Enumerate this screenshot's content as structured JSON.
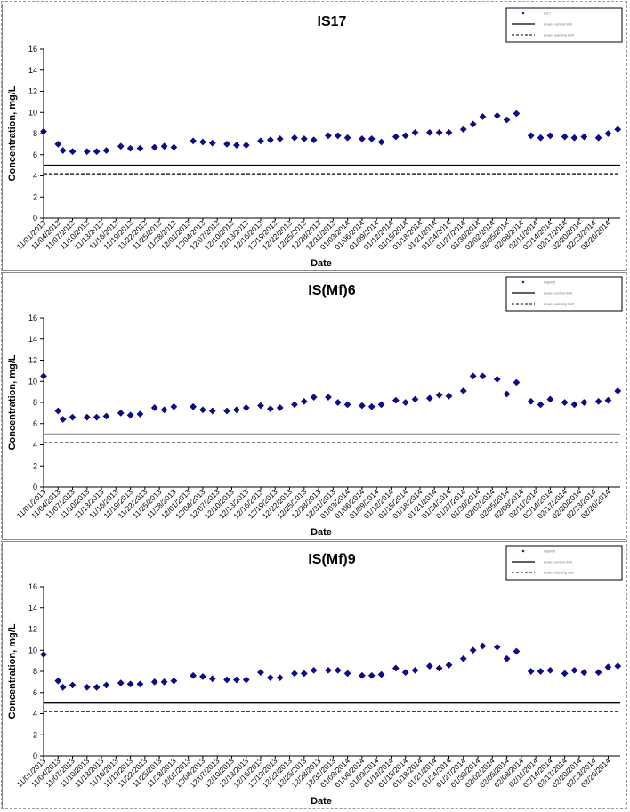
{
  "chart_data": [
    {
      "type": "scatter",
      "title": "IS17",
      "xlabel": "Date",
      "ylabel": "Concentration, mg/L",
      "ylim": [
        0,
        16
      ],
      "yticks": [
        "0",
        "2",
        "4",
        "6",
        "8",
        "10",
        "12",
        "14",
        "16"
      ],
      "legend_position": "top-right",
      "legend_entries": [
        "IS17",
        "Lower control limit",
        "Lower warning limit"
      ],
      "x_tick_labels": [
        "11/01/2013",
        "11/04/2013",
        "11/07/2013",
        "11/10/2013",
        "11/13/2013",
        "11/16/2013",
        "11/19/2013",
        "11/22/2013",
        "11/25/2013",
        "11/28/2013",
        "12/01/2013",
        "12/04/2013",
        "12/07/2013",
        "12/10/2013",
        "12/13/2013",
        "12/16/2013",
        "12/19/2013",
        "12/22/2013",
        "12/25/2013",
        "12/28/2013",
        "12/31/2013",
        "01/03/2014",
        "01/06/2014",
        "01/09/2014",
        "01/12/2014",
        "01/15/2014",
        "01/18/2014",
        "01/21/2014",
        "01/24/2014",
        "01/27/2014",
        "01/30/2014",
        "02/02/2014",
        "02/05/2014",
        "02/08/2014",
        "02/11/2014",
        "02/14/2014",
        "02/17/2014",
        "02/20/2014",
        "02/23/2014",
        "02/26/2014"
      ],
      "x": [
        "11/01/2013",
        "11/04/2013",
        "11/05/2013",
        "11/07/2013",
        "11/10/2013",
        "11/12/2013",
        "11/14/2013",
        "11/17/2013",
        "11/19/2013",
        "11/21/2013",
        "11/24/2013",
        "11/26/2013",
        "11/28/2013",
        "12/02/2013",
        "12/04/2013",
        "12/06/2013",
        "12/09/2013",
        "12/11/2013",
        "12/13/2013",
        "12/16/2013",
        "12/18/2013",
        "12/20/2013",
        "12/23/2013",
        "12/25/2013",
        "12/27/2013",
        "12/30/2013",
        "01/01/2014",
        "01/03/2014",
        "01/06/2014",
        "01/08/2014",
        "01/10/2014",
        "01/13/2014",
        "01/15/2014",
        "01/17/2014",
        "01/20/2014",
        "01/22/2014",
        "01/24/2014",
        "01/27/2014",
        "01/29/2014",
        "01/31/2014",
        "02/03/2014",
        "02/05/2014",
        "02/07/2014",
        "02/10/2014",
        "02/12/2014",
        "02/14/2014",
        "02/17/2014",
        "02/19/2014",
        "02/21/2014",
        "02/24/2014",
        "02/26/2014",
        "02/28/2014"
      ],
      "series": [
        {
          "values": [
            8.2,
            7.0,
            6.4,
            6.3,
            6.3,
            6.3,
            6.4,
            6.8,
            6.6,
            6.6,
            6.7,
            6.8,
            6.7,
            7.3,
            7.2,
            7.1,
            7.0,
            6.9,
            6.9,
            7.3,
            7.4,
            7.5,
            7.6,
            7.5,
            7.4,
            7.8,
            7.8,
            7.6,
            7.5,
            7.5,
            7.2,
            7.7,
            7.8,
            8.1,
            8.1,
            8.1,
            8.1,
            8.4,
            8.9,
            9.6,
            9.7,
            9.3,
            9.9,
            7.8,
            7.6,
            7.8,
            7.7,
            7.6,
            7.7,
            7.6,
            8.0,
            8.4
          ]
        },
        {
          "name": "Lower control limit",
          "values": [
            5.0,
            5.0
          ]
        },
        {
          "name": "Lower warning limit",
          "values": [
            4.2,
            4.2
          ]
        }
      ]
    },
    {
      "type": "scatter",
      "title": "IS(Mf)6",
      "xlabel": "Date",
      "ylabel": "Concentration, mg/L",
      "ylim": [
        0,
        16
      ],
      "yticks": [
        "0",
        "2",
        "4",
        "6",
        "8",
        "10",
        "12",
        "14",
        "16"
      ],
      "legend_position": "top-right",
      "legend_entries": [
        "IS(Mf)6",
        "Lower control limit",
        "Lower warning limit"
      ],
      "x_tick_labels": [
        "11/01/2013",
        "11/04/2013",
        "11/07/2013",
        "11/10/2013",
        "11/13/2013",
        "11/16/2013",
        "11/19/2013",
        "11/22/2013",
        "11/25/2013",
        "11/28/2013",
        "12/01/2013",
        "12/04/2013",
        "12/07/2013",
        "12/10/2013",
        "12/13/2013",
        "12/16/2013",
        "12/19/2013",
        "12/22/2013",
        "12/25/2013",
        "12/28/2013",
        "12/31/2013",
        "01/03/2014",
        "01/06/2014",
        "01/09/2014",
        "01/12/2014",
        "01/15/2014",
        "01/18/2014",
        "01/21/2014",
        "01/24/2014",
        "01/27/2014",
        "01/30/2014",
        "02/02/2014",
        "02/05/2014",
        "02/08/2014",
        "02/11/2014",
        "02/14/2014",
        "02/17/2014",
        "02/20/2014",
        "02/23/2014",
        "02/26/2014"
      ],
      "x": [
        "11/01/2013",
        "11/04/2013",
        "11/05/2013",
        "11/07/2013",
        "11/10/2013",
        "11/12/2013",
        "11/14/2013",
        "11/17/2013",
        "11/19/2013",
        "11/21/2013",
        "11/24/2013",
        "11/26/2013",
        "11/28/2013",
        "12/02/2013",
        "12/04/2013",
        "12/06/2013",
        "12/09/2013",
        "12/11/2013",
        "12/13/2013",
        "12/16/2013",
        "12/18/2013",
        "12/20/2013",
        "12/23/2013",
        "12/25/2013",
        "12/27/2013",
        "12/30/2013",
        "01/01/2014",
        "01/03/2014",
        "01/06/2014",
        "01/08/2014",
        "01/10/2014",
        "01/13/2014",
        "01/15/2014",
        "01/17/2014",
        "01/20/2014",
        "01/22/2014",
        "01/24/2014",
        "01/27/2014",
        "01/29/2014",
        "01/31/2014",
        "02/03/2014",
        "02/05/2014",
        "02/07/2014",
        "02/10/2014",
        "02/12/2014",
        "02/14/2014",
        "02/17/2014",
        "02/19/2014",
        "02/21/2014",
        "02/24/2014",
        "02/26/2014",
        "02/28/2014"
      ],
      "series": [
        {
          "values": [
            10.5,
            7.2,
            6.4,
            6.6,
            6.6,
            6.6,
            6.7,
            7.0,
            6.8,
            6.9,
            7.5,
            7.3,
            7.6,
            7.6,
            7.3,
            7.2,
            7.2,
            7.3,
            7.5,
            7.7,
            7.4,
            7.5,
            7.8,
            8.1,
            8.5,
            8.5,
            8.0,
            7.8,
            7.7,
            7.6,
            7.8,
            8.2,
            8.0,
            8.3,
            8.4,
            8.7,
            8.6,
            9.1,
            10.5,
            10.5,
            10.2,
            8.8,
            9.9,
            8.1,
            7.8,
            8.3,
            8.0,
            7.8,
            8.0,
            8.1,
            8.2,
            9.1
          ]
        },
        {
          "name": "Lower control limit",
          "values": [
            5.0,
            5.0
          ]
        },
        {
          "name": "Lower warning limit",
          "values": [
            4.2,
            4.2
          ]
        }
      ]
    },
    {
      "type": "scatter",
      "title": "IS(Mf)9",
      "xlabel": "Date",
      "ylabel": "Concentration, mg/L",
      "ylim": [
        0,
        16
      ],
      "yticks": [
        "0",
        "2",
        "4",
        "6",
        "8",
        "10",
        "12",
        "14",
        "16"
      ],
      "legend_position": "top-right",
      "legend_entries": [
        "IS(Mf)9",
        "Lower control limit",
        "Lower warning limit"
      ],
      "x_tick_labels": [
        "11/01/2013",
        "11/04/2013",
        "11/07/2013",
        "11/10/2013",
        "11/13/2013",
        "11/16/2013",
        "11/19/2013",
        "11/22/2013",
        "11/25/2013",
        "11/28/2013",
        "12/01/2013",
        "12/04/2013",
        "12/07/2013",
        "12/10/2013",
        "12/13/2013",
        "12/16/2013",
        "12/19/2013",
        "12/22/2013",
        "12/25/2013",
        "12/28/2013",
        "12/31/2013",
        "01/03/2014",
        "01/06/2014",
        "01/09/2014",
        "01/12/2014",
        "01/15/2014",
        "01/18/2014",
        "01/21/2014",
        "01/24/2014",
        "01/27/2014",
        "01/30/2014",
        "02/02/2014",
        "02/05/2014",
        "02/08/2014",
        "02/11/2014",
        "02/14/2014",
        "02/17/2014",
        "02/20/2014",
        "02/23/2014",
        "02/26/2014"
      ],
      "x": [
        "11/01/2013",
        "11/04/2013",
        "11/05/2013",
        "11/07/2013",
        "11/10/2013",
        "11/12/2013",
        "11/14/2013",
        "11/17/2013",
        "11/19/2013",
        "11/21/2013",
        "11/24/2013",
        "11/26/2013",
        "11/28/2013",
        "12/02/2013",
        "12/04/2013",
        "12/06/2013",
        "12/09/2013",
        "12/11/2013",
        "12/13/2013",
        "12/16/2013",
        "12/18/2013",
        "12/20/2013",
        "12/23/2013",
        "12/25/2013",
        "12/27/2013",
        "12/30/2013",
        "01/01/2014",
        "01/03/2014",
        "01/06/2014",
        "01/08/2014",
        "01/10/2014",
        "01/13/2014",
        "01/15/2014",
        "01/17/2014",
        "01/20/2014",
        "01/22/2014",
        "01/24/2014",
        "01/27/2014",
        "01/29/2014",
        "01/31/2014",
        "02/03/2014",
        "02/05/2014",
        "02/07/2014",
        "02/10/2014",
        "02/12/2014",
        "02/14/2014",
        "02/17/2014",
        "02/19/2014",
        "02/21/2014",
        "02/24/2014",
        "02/26/2014",
        "02/28/2014"
      ],
      "series": [
        {
          "values": [
            9.6,
            7.1,
            6.5,
            6.7,
            6.5,
            6.5,
            6.7,
            6.9,
            6.8,
            6.8,
            7.0,
            7.0,
            7.1,
            7.6,
            7.5,
            7.3,
            7.2,
            7.2,
            7.2,
            7.9,
            7.4,
            7.4,
            7.8,
            7.8,
            8.1,
            8.1,
            8.1,
            7.8,
            7.6,
            7.6,
            7.7,
            8.3,
            7.9,
            8.1,
            8.5,
            8.3,
            8.6,
            9.2,
            10.0,
            10.4,
            10.3,
            9.2,
            9.9,
            8.0,
            8.0,
            8.1,
            7.8,
            8.1,
            7.9,
            7.9,
            8.4,
            8.5
          ]
        },
        {
          "name": "Lower control limit",
          "values": [
            5.0,
            5.0
          ]
        },
        {
          "name": "Lower warning limit",
          "values": [
            4.2,
            4.2
          ]
        }
      ]
    }
  ]
}
